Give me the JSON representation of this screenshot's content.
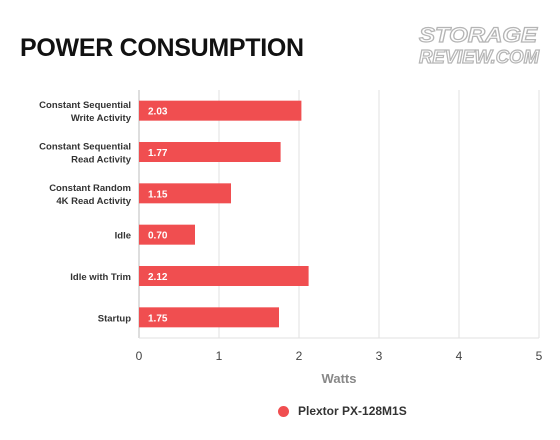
{
  "title": "POWER CONSUMPTION",
  "watermark": {
    "line1": "STORAGE",
    "line2": "REVIEW.COM"
  },
  "colors": {
    "bar": "#f04e50",
    "grid": "#e2e2e2",
    "axis": "#bdbdbd",
    "text": "#333333",
    "axis_title": "#888888"
  },
  "chart_data": {
    "type": "bar",
    "orientation": "horizontal",
    "categories": [
      [
        "Constant Sequential",
        "Write Activity"
      ],
      [
        "Constant Sequential",
        "Read Activity"
      ],
      [
        "Constant Random",
        "4K Read Activity"
      ],
      [
        "Idle"
      ],
      [
        "Idle with Trim"
      ],
      [
        "Startup"
      ]
    ],
    "series": [
      {
        "name": "Plextor PX-128M1S",
        "values": [
          2.03,
          1.77,
          1.15,
          0.7,
          2.12,
          1.75
        ],
        "labels": [
          "2.03",
          "1.77",
          "1.15",
          "0.70",
          "2.12",
          "1.75"
        ]
      }
    ],
    "xlabel": "Watts",
    "xlim": [
      0,
      5
    ],
    "xticks": [
      0,
      1,
      2,
      3,
      4,
      5
    ],
    "grid": true,
    "legend": "bottom"
  }
}
